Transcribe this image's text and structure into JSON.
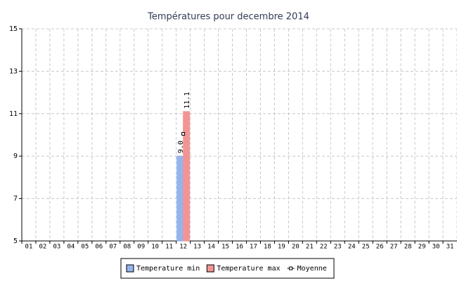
{
  "chart_data": {
    "type": "bar",
    "title": "Températures pour decembre 2014",
    "categories": [
      "01",
      "02",
      "03",
      "04",
      "05",
      "06",
      "07",
      "08",
      "09",
      "10",
      "11",
      "12",
      "13",
      "14",
      "15",
      "16",
      "17",
      "18",
      "19",
      "20",
      "21",
      "22",
      "23",
      "24",
      "25",
      "26",
      "27",
      "28",
      "29",
      "30",
      "31"
    ],
    "series": [
      {
        "name": "Temperature min",
        "color": "#94b4ee",
        "values": [
          null,
          null,
          null,
          null,
          null,
          null,
          null,
          null,
          null,
          null,
          null,
          9,
          null,
          null,
          null,
          null,
          null,
          null,
          null,
          null,
          null,
          null,
          null,
          null,
          null,
          null,
          null,
          null,
          null,
          null,
          null
        ],
        "value_labels": [
          null,
          null,
          null,
          null,
          null,
          null,
          null,
          null,
          null,
          null,
          null,
          "9.0",
          null,
          null,
          null,
          null,
          null,
          null,
          null,
          null,
          null,
          null,
          null,
          null,
          null,
          null,
          null,
          null,
          null,
          null,
          null
        ]
      },
      {
        "name": "Temperature max",
        "color": "#f29494",
        "values": [
          null,
          null,
          null,
          null,
          null,
          null,
          null,
          null,
          null,
          null,
          null,
          11.1,
          null,
          null,
          null,
          null,
          null,
          null,
          null,
          null,
          null,
          null,
          null,
          null,
          null,
          null,
          null,
          null,
          null,
          null,
          null
        ]
      },
      {
        "name": "Moyenne",
        "type": "line",
        "color": "#000000",
        "values": [
          null,
          null,
          null,
          null,
          null,
          null,
          null,
          null,
          null,
          null,
          null,
          10.05,
          null,
          null,
          null,
          null,
          null,
          null,
          null,
          null,
          null,
          null,
          null,
          null,
          null,
          null,
          null,
          null,
          null,
          null,
          null
        ]
      }
    ],
    "ylim": [
      5,
      15
    ],
    "yticks": [
      5,
      7,
      9,
      11,
      13,
      15
    ],
    "grid": true,
    "legend": "bottom"
  }
}
